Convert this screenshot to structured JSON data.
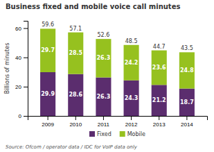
{
  "chart_data": {
    "type": "bar",
    "stacked": true,
    "title": "Business fixed and mobile voice call minutes",
    "ylabel": "Billions of minutes",
    "annotations": [
      "Source: Ofcom / operator data / IDC for VoIP data only"
    ],
    "categories": [
      "2009",
      "2010",
      "2011",
      "2012",
      "2013",
      "2014"
    ],
    "series": [
      {
        "name": "Fixed",
        "color": "#5B2D6E",
        "values": [
          29.9,
          28.6,
          26.3,
          24.3,
          21.2,
          18.7
        ]
      },
      {
        "name": "Mobile",
        "color": "#96C11F",
        "values": [
          29.7,
          28.5,
          26.3,
          24.2,
          23.6,
          24.8
        ]
      }
    ],
    "totals": [
      59.6,
      57.1,
      52.6,
      48.5,
      44.7,
      43.5
    ],
    "ylim": [
      0,
      65
    ],
    "yticks": [
      0,
      20,
      40,
      60
    ],
    "grid": false,
    "legend": "bottom",
    "data_labels": true
  }
}
